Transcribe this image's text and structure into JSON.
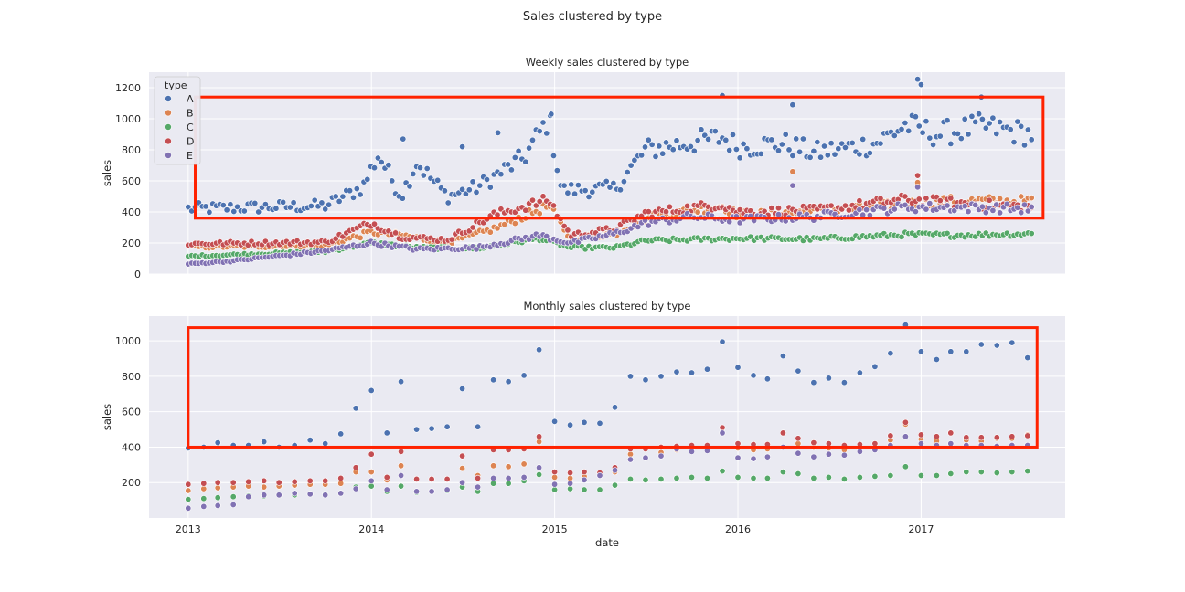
{
  "figure": {
    "suptitle": "Sales clustered by type"
  },
  "colors": {
    "A": "#4c72b0",
    "B": "#dd8452",
    "C": "#55a868",
    "D": "#c44e52",
    "E": "#8172b3",
    "plot_bg": "#eaeaf2",
    "grid": "#ffffff",
    "highlight_box": "#ff2200"
  },
  "chart_data": [
    {
      "type": "scatter",
      "title": "Weekly sales clustered by type",
      "xlabel": "",
      "ylabel": "sales",
      "x_unit": "date",
      "xlim": [
        "2012-10-15",
        "2017-10-15"
      ],
      "ylim": [
        0,
        1300
      ],
      "xticks": [
        "2013",
        "2014",
        "2015",
        "2016",
        "2017"
      ],
      "yticks": [
        0,
        200,
        400,
        600,
        800,
        1000,
        1200
      ],
      "grid": true,
      "legend": {
        "title": "type",
        "placement": "top-left",
        "entries": [
          "A",
          "B",
          "C",
          "D",
          "E"
        ]
      },
      "highlight_box": {
        "x": [
          "2013-01-15",
          "2017-09-01"
        ],
        "y": [
          360,
          1140
        ]
      },
      "series_segments": {
        "A": [
          [
            "2013-01-01",
            420
          ],
          [
            "2013-10-01",
            440
          ],
          [
            "2013-12-15",
            560
          ],
          [
            "2014-01-15",
            770
          ],
          [
            "2014-03-01",
            500
          ],
          [
            "2014-04-01",
            720
          ],
          [
            "2014-06-01",
            500
          ],
          [
            "2014-08-01",
            560
          ],
          [
            "2014-11-01",
            750
          ],
          [
            "2014-12-20",
            1000
          ],
          [
            "2015-01-15",
            540
          ],
          [
            "2015-05-01",
            550
          ],
          [
            "2015-07-01",
            800
          ],
          [
            "2015-12-01",
            880
          ],
          [
            "2016-01-01",
            820
          ],
          [
            "2016-04-01",
            840
          ],
          [
            "2016-06-01",
            780
          ],
          [
            "2016-10-01",
            840
          ],
          [
            "2016-12-01",
            960
          ],
          [
            "2017-02-01",
            900
          ],
          [
            "2017-05-01",
            950
          ],
          [
            "2017-08-10",
            900
          ]
        ],
        "B": [
          [
            "2013-01-01",
            175
          ],
          [
            "2013-10-01",
            185
          ],
          [
            "2014-01-01",
            270
          ],
          [
            "2014-03-01",
            250
          ],
          [
            "2014-06-01",
            200
          ],
          [
            "2014-09-01",
            290
          ],
          [
            "2014-12-20",
            440
          ],
          [
            "2015-02-01",
            230
          ],
          [
            "2015-05-01",
            260
          ],
          [
            "2015-07-01",
            360
          ],
          [
            "2015-12-01",
            440
          ],
          [
            "2016-01-01",
            380
          ],
          [
            "2016-06-01",
            400
          ],
          [
            "2016-12-01",
            450
          ],
          [
            "2017-03-01",
            470
          ],
          [
            "2017-08-10",
            470
          ]
        ],
        "C": [
          [
            "2013-01-01",
            115
          ],
          [
            "2013-10-01",
            145
          ],
          [
            "2014-01-01",
            200
          ],
          [
            "2014-04-01",
            170
          ],
          [
            "2014-08-01",
            165
          ],
          [
            "2014-12-01",
            230
          ],
          [
            "2015-02-01",
            170
          ],
          [
            "2015-05-01",
            170
          ],
          [
            "2015-07-01",
            215
          ],
          [
            "2016-01-01",
            230
          ],
          [
            "2016-06-01",
            225
          ],
          [
            "2016-12-01",
            255
          ],
          [
            "2017-03-01",
            250
          ],
          [
            "2017-08-10",
            260
          ]
        ],
        "D": [
          [
            "2013-01-01",
            195
          ],
          [
            "2013-10-01",
            205
          ],
          [
            "2014-01-01",
            330
          ],
          [
            "2014-03-01",
            240
          ],
          [
            "2014-06-01",
            220
          ],
          [
            "2014-09-01",
            380
          ],
          [
            "2014-12-20",
            480
          ],
          [
            "2015-02-01",
            250
          ],
          [
            "2015-05-01",
            290
          ],
          [
            "2015-07-01",
            390
          ],
          [
            "2015-12-01",
            450
          ],
          [
            "2016-01-01",
            400
          ],
          [
            "2016-06-01",
            410
          ],
          [
            "2016-12-01",
            480
          ],
          [
            "2017-03-01",
            460
          ],
          [
            "2017-08-10",
            430
          ]
        ],
        "E": [
          [
            "2013-01-01",
            65
          ],
          [
            "2013-04-01",
            85
          ],
          [
            "2013-10-01",
            150
          ],
          [
            "2014-01-01",
            200
          ],
          [
            "2014-04-01",
            160
          ],
          [
            "2014-08-01",
            170
          ],
          [
            "2014-12-01",
            250
          ],
          [
            "2015-02-01",
            200
          ],
          [
            "2015-05-01",
            260
          ],
          [
            "2015-07-01",
            330
          ],
          [
            "2015-10-01",
            370
          ],
          [
            "2016-01-01",
            350
          ],
          [
            "2016-06-01",
            370
          ],
          [
            "2016-12-01",
            430
          ],
          [
            "2017-03-01",
            430
          ],
          [
            "2017-08-10",
            420
          ]
        ]
      },
      "notable_points": {
        "A": [
          [
            "2014-03-05",
            870
          ],
          [
            "2014-07-01",
            820
          ],
          [
            "2014-09-10",
            910
          ],
          [
            "2014-12-25",
            1030
          ],
          [
            "2015-12-01",
            1150
          ],
          [
            "2016-04-20",
            1090
          ],
          [
            "2016-12-25",
            1255
          ],
          [
            "2017-01-01",
            1220
          ],
          [
            "2017-05-01",
            1140
          ]
        ],
        "B": [
          [
            "2016-04-20",
            660
          ],
          [
            "2016-12-25",
            590
          ]
        ],
        "D": [
          [
            "2016-12-25",
            635
          ]
        ],
        "E": [
          [
            "2016-04-20",
            570
          ],
          [
            "2016-12-25",
            560
          ]
        ]
      }
    },
    {
      "type": "scatter",
      "title": "Monthly sales clustered by type",
      "xlabel": "date",
      "ylabel": "sales",
      "x_unit": "date",
      "xlim": [
        "2012-10-15",
        "2017-10-15"
      ],
      "ylim": [
        0,
        1140
      ],
      "xticks": [
        "2013",
        "2014",
        "2015",
        "2016",
        "2017"
      ],
      "yticks": [
        200,
        400,
        600,
        800,
        1000
      ],
      "grid": true,
      "highlight_box": {
        "x": [
          "2013-01-01",
          "2017-08-20"
        ],
        "y": [
          400,
          1075
        ]
      },
      "categories": [
        "2013-01",
        "2013-02",
        "2013-03",
        "2013-04",
        "2013-05",
        "2013-06",
        "2013-07",
        "2013-08",
        "2013-09",
        "2013-10",
        "2013-11",
        "2013-12",
        "2014-01",
        "2014-02",
        "2014-03",
        "2014-04",
        "2014-05",
        "2014-06",
        "2014-07",
        "2014-08",
        "2014-09",
        "2014-10",
        "2014-11",
        "2014-12",
        "2015-01",
        "2015-02",
        "2015-03",
        "2015-04",
        "2015-05",
        "2015-06",
        "2015-07",
        "2015-08",
        "2015-09",
        "2015-10",
        "2015-11",
        "2015-12",
        "2016-01",
        "2016-02",
        "2016-03",
        "2016-04",
        "2016-05",
        "2016-06",
        "2016-07",
        "2016-08",
        "2016-09",
        "2016-10",
        "2016-11",
        "2016-12",
        "2017-01",
        "2017-02",
        "2017-03",
        "2017-04",
        "2017-05",
        "2017-06",
        "2017-07",
        "2017-08"
      ],
      "series": [
        {
          "name": "A",
          "values": [
            395,
            400,
            425,
            410,
            410,
            430,
            400,
            410,
            440,
            420,
            475,
            620,
            720,
            480,
            770,
            500,
            505,
            515,
            730,
            515,
            780,
            770,
            805,
            950,
            545,
            525,
            540,
            535,
            625,
            800,
            780,
            800,
            825,
            820,
            840,
            995,
            850,
            805,
            785,
            915,
            830,
            765,
            790,
            765,
            820,
            855,
            930,
            1090,
            940,
            895,
            940,
            940,
            980,
            975,
            990,
            905
          ]
        },
        {
          "name": "B",
          "values": [
            155,
            165,
            170,
            175,
            180,
            175,
            180,
            185,
            190,
            190,
            195,
            260,
            260,
            215,
            295,
            220,
            220,
            220,
            280,
            240,
            295,
            290,
            305,
            430,
            230,
            225,
            235,
            240,
            260,
            360,
            340,
            370,
            385,
            380,
            385,
            480,
            395,
            385,
            390,
            480,
            420,
            400,
            395,
            385,
            400,
            420,
            440,
            530,
            445,
            435,
            480,
            440,
            435,
            450,
            450,
            470
          ]
        },
        {
          "name": "C",
          "values": [
            105,
            110,
            115,
            120,
            125,
            125,
            130,
            130,
            135,
            135,
            140,
            175,
            180,
            150,
            180,
            145,
            150,
            155,
            175,
            150,
            195,
            195,
            210,
            245,
            160,
            165,
            160,
            160,
            185,
            220,
            215,
            220,
            225,
            230,
            225,
            265,
            230,
            225,
            225,
            260,
            250,
            225,
            230,
            220,
            230,
            235,
            240,
            290,
            240,
            240,
            250,
            260,
            260,
            255,
            260,
            265
          ]
        },
        {
          "name": "D",
          "values": [
            190,
            195,
            200,
            200,
            205,
            210,
            200,
            205,
            210,
            210,
            225,
            285,
            360,
            230,
            375,
            220,
            220,
            220,
            350,
            225,
            385,
            385,
            390,
            460,
            260,
            255,
            260,
            255,
            285,
            390,
            390,
            400,
            405,
            410,
            410,
            510,
            420,
            415,
            415,
            480,
            450,
            425,
            420,
            410,
            415,
            420,
            465,
            540,
            470,
            460,
            480,
            455,
            455,
            455,
            460,
            465
          ]
        },
        {
          "name": "E",
          "values": [
            55,
            65,
            70,
            75,
            120,
            130,
            130,
            140,
            135,
            130,
            140,
            165,
            210,
            160,
            240,
            150,
            150,
            160,
            200,
            175,
            225,
            225,
            230,
            285,
            190,
            195,
            215,
            240,
            270,
            330,
            340,
            350,
            390,
            375,
            380,
            480,
            340,
            335,
            345,
            400,
            365,
            345,
            360,
            355,
            375,
            385,
            410,
            460,
            420,
            410,
            420,
            410,
            410,
            405,
            410,
            410
          ]
        }
      ]
    }
  ]
}
